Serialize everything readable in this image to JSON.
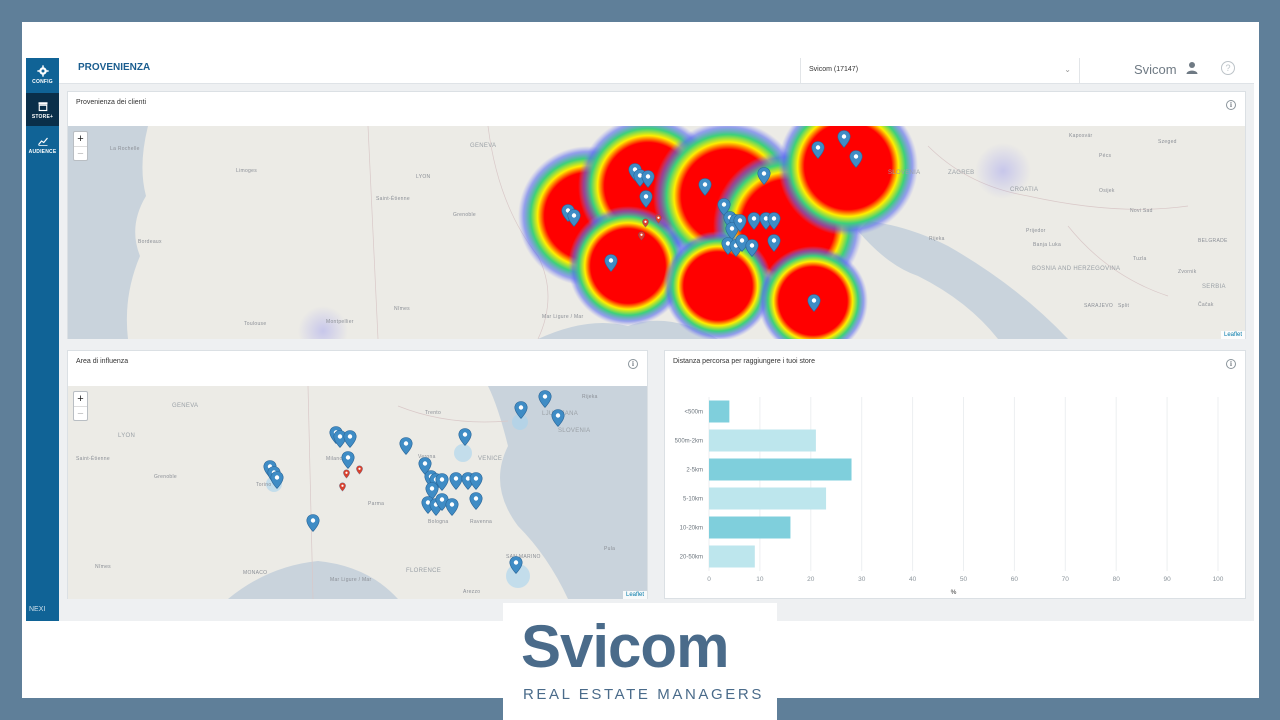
{
  "sidebar": {
    "items": [
      {
        "label": "CONFIG",
        "icon": "gear-icon"
      },
      {
        "label": "STORE+",
        "icon": "store-icon"
      },
      {
        "label": "AUDIENCE",
        "icon": "chart-icon"
      }
    ],
    "footer": "NEXI"
  },
  "header": {
    "title": "PROVENIENZA",
    "store_select": "Svicom (17147)",
    "user": "Svicom"
  },
  "card_origin": {
    "title": "Provenienza dei clienti",
    "attribution": "Leaflet",
    "zoom_in": "+",
    "zoom_out": "−",
    "labels": [
      "La Rochelle",
      "Limoges",
      "Bordeaux",
      "Saint-Étienne",
      "Grenoble",
      "LYON",
      "GENEVA",
      "Nîmes",
      "Toulouse",
      "Montpellier",
      "Mar Ligure / Mar",
      "SLOVENIA",
      "ZAGREB",
      "CROATIA",
      "BOSNIA AND HERZEGOVINA",
      "SERBIA",
      "SARAJEVO",
      "BELGRADE",
      "Osijek",
      "Novi Sad",
      "Pécs",
      "Kaposvár",
      "Szeged",
      "Split",
      "Rijeka",
      "Banja Luka",
      "Tuzla",
      "Čačak",
      "Zvornik",
      "Prijedor"
    ]
  },
  "card_influence": {
    "title": "Area di influenza",
    "attribution": "Leaflet",
    "zoom_in": "+",
    "zoom_out": "−",
    "labels": [
      "GENEVA",
      "LYON",
      "Saint-Étienne",
      "Grenoble",
      "Milano",
      "Torino",
      "Trento",
      "LJUBLJANA",
      "SLOVENIA",
      "VENICE",
      "Verona",
      "Parma",
      "Bologna",
      "Ravenna",
      "FLORENCE",
      "SAN MARINO",
      "MONACO",
      "Mar Ligure / Mar",
      "Nîmes",
      "Arezzo",
      "Rijeka",
      "Pula"
    ]
  },
  "card_distance": {
    "title": "Distanza percorsa per raggiungere i tuoi store",
    "x_unit": "%"
  },
  "chart_data": {
    "type": "bar",
    "orientation": "horizontal",
    "categories": [
      "<500m",
      "500m-2km",
      "2-5km",
      "5-10km",
      "10-20km",
      "20-50km"
    ],
    "values": [
      4,
      21,
      28,
      23,
      16,
      9
    ],
    "xlabel": "%",
    "xlim": [
      0,
      100
    ],
    "xticks": [
      0,
      10,
      20,
      30,
      40,
      50,
      60,
      70,
      80,
      90,
      100
    ],
    "grid": true,
    "colors": [
      "#7fcfdc",
      "#bde6ed",
      "#7fcfdc",
      "#bde6ed",
      "#7fcfdc",
      "#bde6ed"
    ]
  },
  "logo": {
    "word": "Svicom",
    "tagline": "REAL ESTATE MANAGERS"
  },
  "colors": {
    "sidebar": "#106396",
    "accent": "#1a5d8f",
    "pin": "#3f8cc5",
    "pin_alt": "#d9412e"
  }
}
